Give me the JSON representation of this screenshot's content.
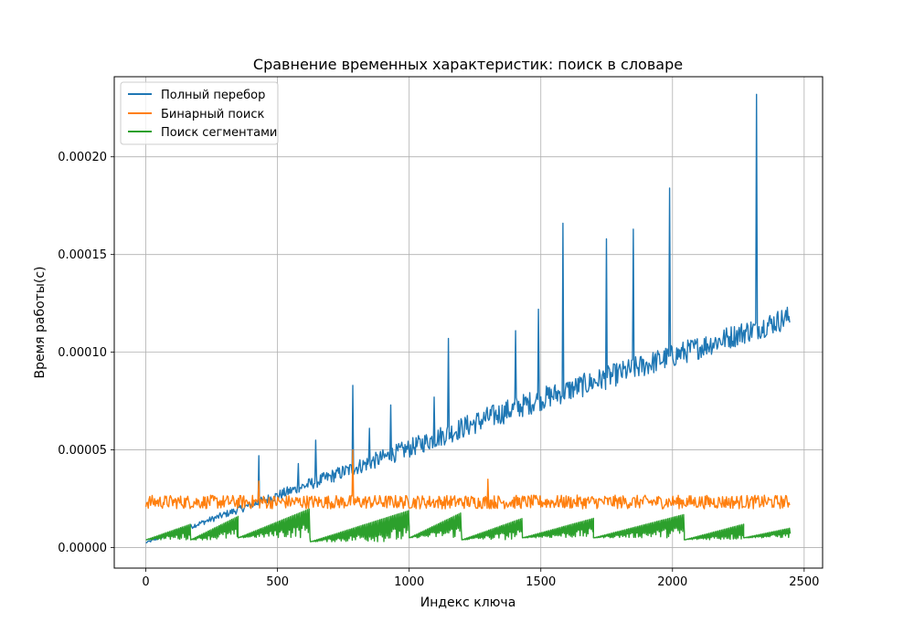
{
  "chart_data": {
    "type": "line",
    "title": "Сравнение временных характеристик: поиск в словаре",
    "xlabel": "Индекс ключа",
    "ylabel": "Время работы(с)",
    "xlim": [
      -120,
      2570
    ],
    "ylim": [
      -1.05e-05,
      0.000241
    ],
    "x_ticks": [
      0,
      500,
      1000,
      1500,
      2000,
      2500
    ],
    "x_tick_labels": [
      "0",
      "500",
      "1000",
      "1500",
      "2000",
      "2500"
    ],
    "y_ticks": [
      0,
      5e-05,
      0.0001,
      0.00015,
      0.0002
    ],
    "y_tick_labels": [
      "0.00000",
      "0.00005",
      "0.00010",
      "0.00015",
      "0.00020"
    ],
    "grid": true,
    "legend_position": "top-left",
    "series": [
      {
        "name": "Полный перебор",
        "color": "#1f77b4",
        "trend": {
          "x": [
            0,
            500,
            1000,
            1500,
            2000,
            2447
          ],
          "y": [
            2e-06,
            2.4e-05,
            4.6e-05,
            7e-05,
            9.2e-05,
            0.000112
          ]
        },
        "noise_amplitude": 1.2e-05,
        "spikes": [
          {
            "x": 430,
            "y": 4.7e-05
          },
          {
            "x": 580,
            "y": 4.3e-05
          },
          {
            "x": 645,
            "y": 5.5e-05
          },
          {
            "x": 785,
            "y": 8.3e-05
          },
          {
            "x": 850,
            "y": 6.1e-05
          },
          {
            "x": 930,
            "y": 7.3e-05
          },
          {
            "x": 1095,
            "y": 7.7e-05
          },
          {
            "x": 1150,
            "y": 0.000107
          },
          {
            "x": 1405,
            "y": 0.000111
          },
          {
            "x": 1490,
            "y": 0.000122
          },
          {
            "x": 1585,
            "y": 0.000166
          },
          {
            "x": 1750,
            "y": 0.000158
          },
          {
            "x": 1850,
            "y": 0.000163
          },
          {
            "x": 1990,
            "y": 0.000184
          },
          {
            "x": 2320,
            "y": 0.000232
          }
        ]
      },
      {
        "name": "Бинарный поиск",
        "color": "#ff7f0e",
        "baseline": 2.3e-05,
        "noise_amplitude": 7e-06,
        "x_range": [
          0,
          2447
        ],
        "spikes": [
          {
            "x": 430,
            "y": 3.4e-05
          },
          {
            "x": 785,
            "y": 5e-05
          },
          {
            "x": 1300,
            "y": 3.5e-05
          }
        ]
      },
      {
        "name": "Поиск сегментами",
        "color": "#2ca02c",
        "segments": [
          {
            "x0": 0,
            "x1": 170,
            "y0": 4e-06,
            "y1": 1.2e-05
          },
          {
            "x0": 170,
            "x1": 350,
            "y0": 4e-06,
            "y1": 1.6e-05
          },
          {
            "x0": 350,
            "x1": 625,
            "y0": 5e-06,
            "y1": 2e-05
          },
          {
            "x0": 625,
            "x1": 1000,
            "y0": 3e-06,
            "y1": 1.9e-05
          },
          {
            "x0": 1000,
            "x1": 1200,
            "y0": 5e-06,
            "y1": 1.8e-05
          },
          {
            "x0": 1200,
            "x1": 1430,
            "y0": 4e-06,
            "y1": 1.5e-05
          },
          {
            "x0": 1430,
            "x1": 1700,
            "y0": 5e-06,
            "y1": 1.5e-05
          },
          {
            "x0": 1700,
            "x1": 2045,
            "y0": 5e-06,
            "y1": 1.7e-05
          },
          {
            "x0": 2045,
            "x1": 2270,
            "y0": 4e-06,
            "y1": 1.2e-05
          },
          {
            "x0": 2270,
            "x1": 2447,
            "y0": 5e-06,
            "y1": 1e-05
          }
        ],
        "noise_amplitude": 9e-06,
        "x_range": [
          0,
          2447
        ]
      }
    ]
  }
}
